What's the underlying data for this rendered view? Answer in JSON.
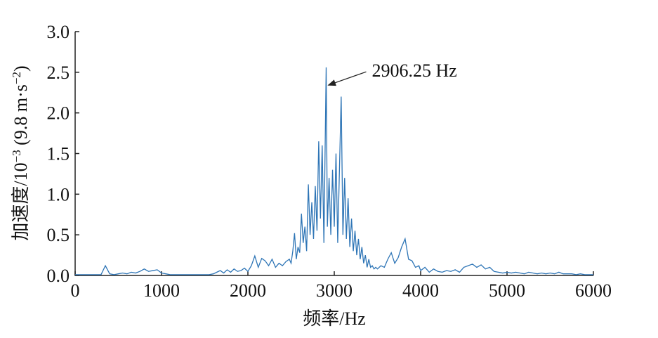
{
  "chart_data": {
    "type": "line",
    "ylabel": [
      "加速度/10",
      "−3",
      " (9.8 m·s",
      "−2",
      ")"
    ],
    "xlabel": "频率/Hz",
    "annotation": {
      "text": "2906.25 Hz",
      "x": 2906.25,
      "y": 2.35
    },
    "xlim": [
      0,
      6000
    ],
    "xticks": [
      0,
      1000,
      2000,
      3000,
      4000,
      5000,
      6000
    ],
    "ylim": [
      0,
      3
    ],
    "yticks": [
      {
        "value": 0,
        "label": "0.0"
      },
      0.5,
      {
        "value": 1,
        "label": "1.0"
      },
      1.5,
      {
        "value": 2,
        "label": "2.0"
      },
      2.5,
      {
        "value": 3,
        "label": "3.0"
      }
    ],
    "x": [
      0,
      50,
      100,
      150,
      200,
      250,
      300,
      350,
      400,
      450,
      500,
      550,
      600,
      650,
      700,
      750,
      800,
      850,
      900,
      950,
      1000,
      1050,
      1100,
      1150,
      1200,
      1250,
      1300,
      1350,
      1400,
      1450,
      1500,
      1550,
      1600,
      1640,
      1680,
      1720,
      1760,
      1800,
      1840,
      1880,
      1920,
      1960,
      2000,
      2040,
      2080,
      2120,
      2160,
      2200,
      2240,
      2280,
      2320,
      2360,
      2400,
      2440,
      2480,
      2500,
      2520,
      2540,
      2560,
      2580,
      2600,
      2620,
      2640,
      2660,
      2680,
      2700,
      2720,
      2740,
      2760,
      2780,
      2800,
      2820,
      2840,
      2860,
      2880,
      2906.25,
      2920,
      2940,
      2960,
      2980,
      3000,
      3020,
      3040,
      3060,
      3080,
      3100,
      3120,
      3140,
      3160,
      3180,
      3200,
      3220,
      3240,
      3260,
      3280,
      3300,
      3320,
      3340,
      3360,
      3380,
      3400,
      3420,
      3440,
      3460,
      3480,
      3500,
      3540,
      3580,
      3620,
      3660,
      3700,
      3740,
      3780,
      3820,
      3860,
      3900,
      3940,
      3980,
      4000,
      4050,
      4100,
      4150,
      4200,
      4250,
      4300,
      4350,
      4400,
      4450,
      4500,
      4550,
      4600,
      4650,
      4700,
      4750,
      4800,
      4850,
      4900,
      4950,
      5000,
      5050,
      5100,
      5150,
      5200,
      5250,
      5300,
      5350,
      5400,
      5450,
      5500,
      5550,
      5600,
      5650,
      5700,
      5750,
      5800,
      5850,
      5900,
      5950,
      6000
    ],
    "series": [
      {
        "color": "#2e75b6",
        "values": [
          0.01,
          0.01,
          0.01,
          0.01,
          0.01,
          0.01,
          0.01,
          0.12,
          0.02,
          0.01,
          0.02,
          0.03,
          0.02,
          0.04,
          0.03,
          0.05,
          0.08,
          0.05,
          0.06,
          0.07,
          0.03,
          0.02,
          0.01,
          0.01,
          0.01,
          0.01,
          0.01,
          0.01,
          0.01,
          0.01,
          0.01,
          0.01,
          0.02,
          0.04,
          0.06,
          0.03,
          0.07,
          0.04,
          0.08,
          0.05,
          0.06,
          0.09,
          0.05,
          0.12,
          0.24,
          0.1,
          0.21,
          0.18,
          0.12,
          0.2,
          0.1,
          0.15,
          0.12,
          0.17,
          0.2,
          0.15,
          0.3,
          0.52,
          0.2,
          0.35,
          0.28,
          0.76,
          0.4,
          0.6,
          0.3,
          1.12,
          0.5,
          0.9,
          0.45,
          1.1,
          0.55,
          1.65,
          0.7,
          1.6,
          0.4,
          2.56,
          0.6,
          1.2,
          0.5,
          1.3,
          0.6,
          1.5,
          0.4,
          1.3,
          2.2,
          0.5,
          1.2,
          0.45,
          0.95,
          0.35,
          0.7,
          0.3,
          0.55,
          0.25,
          0.45,
          0.2,
          0.35,
          0.15,
          0.25,
          0.1,
          0.2,
          0.1,
          0.12,
          0.08,
          0.1,
          0.08,
          0.12,
          0.1,
          0.2,
          0.28,
          0.15,
          0.22,
          0.35,
          0.45,
          0.2,
          0.18,
          0.1,
          0.12,
          0.06,
          0.1,
          0.04,
          0.08,
          0.05,
          0.04,
          0.06,
          0.05,
          0.07,
          0.04,
          0.1,
          0.12,
          0.14,
          0.1,
          0.13,
          0.08,
          0.1,
          0.05,
          0.04,
          0.03,
          0.04,
          0.03,
          0.04,
          0.03,
          0.02,
          0.04,
          0.03,
          0.02,
          0.03,
          0.02,
          0.03,
          0.02,
          0.04,
          0.02,
          0.02,
          0.02,
          0.01,
          0.02,
          0.01,
          0.01,
          0.01
        ]
      }
    ]
  }
}
